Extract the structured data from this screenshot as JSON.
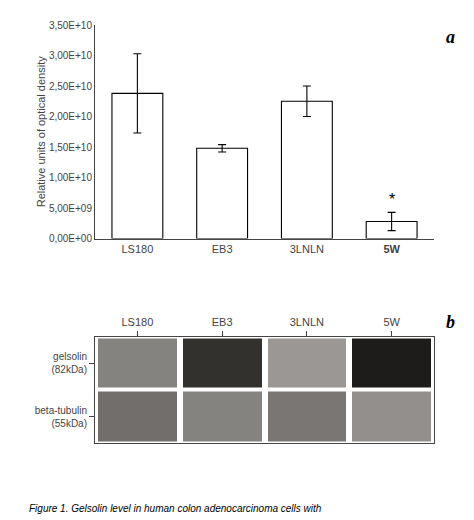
{
  "chart_data": [
    {
      "type": "bar",
      "categories": [
        "LS180",
        "EB3",
        "3LNLN",
        "5W"
      ],
      "values": [
        23800000000.0,
        14800000000.0,
        22500000000.0,
        2800000000.0
      ],
      "errors": [
        6500000000.0,
        600000000.0,
        2500000000.0,
        1500000000.0
      ],
      "color": "#ffffff",
      "ylabel": "Relative units of optical density",
      "ylim": [
        0,
        35000000000.0
      ],
      "yticks": [
        {
          "value": 0,
          "label": "0,00E+00"
        },
        {
          "value": 5000000000.0,
          "label": "5,00E+09"
        },
        {
          "value": 10000000000.0,
          "label": "1,00E+10"
        },
        {
          "value": 15000000000.0,
          "label": "1,50E+10"
        },
        {
          "value": 20000000000.0,
          "label": "2,00E+10"
        },
        {
          "value": 25000000000.0,
          "label": "2,50E+10"
        },
        {
          "value": 30000000000.0,
          "label": "3,00E+10"
        },
        {
          "value": 35000000000.0,
          "label": "3,50E+10"
        }
      ],
      "grid": false,
      "annotations": [
        {
          "text": "*",
          "x": "5W"
        },
        {
          "text": "a"
        }
      ]
    },
    {
      "type": "heatmap",
      "categories": [
        "LS180",
        "EB3",
        "3LNLN",
        "5W"
      ],
      "series": [
        {
          "name": "gelsolin\n(82kDa)",
          "values": [
            0.55,
            0.75,
            0.5,
            0.8
          ]
        },
        {
          "name": "beta-tubulin\n(55kDa)",
          "values": [
            0.6,
            0.55,
            0.58,
            0.52
          ]
        }
      ],
      "annotations": [
        {
          "text": "b"
        }
      ]
    }
  ],
  "caption": "Figure 1. Gelsolin level in human colon adenocarcinoma cells with"
}
